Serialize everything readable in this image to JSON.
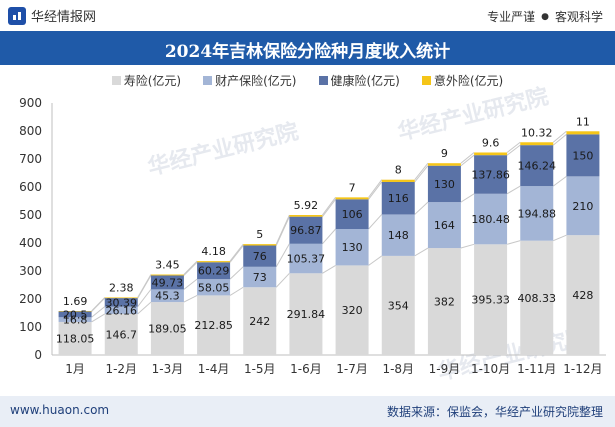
{
  "header": {
    "brand": "华经情报网",
    "tag1": "专业严谨",
    "tag2": "客观科学"
  },
  "footer": {
    "website": "www.huaon.com",
    "source": "数据来源：保监会，华经产业研究院整理"
  },
  "colors": {
    "title_bg": "#1f5aa8",
    "logo": "#1e4fa8",
    "footer_bg": "#e9eef6"
  },
  "chart_data": {
    "type": "bar",
    "stacked": true,
    "title": "2024年吉林保险分险种月度收入统计",
    "categories": [
      "1月",
      "1-2月",
      "1-3月",
      "1-4月",
      "1-5月",
      "1-6月",
      "1-7月",
      "1-8月",
      "1-9月",
      "1-10月",
      "1-11月",
      "1-12月"
    ],
    "series": [
      {
        "name": "寿险(亿元)",
        "color": "#d9d9d9",
        "values": [
          118.05,
          146.7,
          189.05,
          212.85,
          242,
          291.84,
          320,
          354,
          382,
          395.33,
          408.33,
          428
        ],
        "labels": [
          "118.05",
          "146.7",
          "189.05",
          "212.85",
          "242",
          "291.84",
          "320",
          "354",
          "382",
          "395.33",
          "408.33",
          "428"
        ]
      },
      {
        "name": "财产保险(亿元)",
        "color": "#a3b5d6",
        "values": [
          16.8,
          26.16,
          45.3,
          58.05,
          73,
          105.37,
          130,
          148,
          164,
          180.48,
          194.88,
          210
        ],
        "labels": [
          "16.8",
          "26.16",
          "45.3",
          "58.05",
          "73",
          "105.37",
          "130",
          "148",
          "164",
          "180.48",
          "194.88",
          "210"
        ]
      },
      {
        "name": "健康险(亿元)",
        "color": "#5a72a6",
        "values": [
          20.5,
          30.39,
          49.73,
          60.29,
          76,
          96.87,
          106,
          116,
          130,
          137.86,
          146.24,
          150
        ],
        "labels": [
          "20.5",
          "30.39",
          "49.73",
          "60.29",
          "76",
          "96.87",
          "106",
          "116",
          "130",
          "137.86",
          "146.24",
          "150"
        ]
      },
      {
        "name": "意外险(亿元)",
        "color": "#f5c518",
        "values": [
          1.69,
          2.38,
          3.45,
          4.18,
          5,
          5.92,
          7,
          8,
          9,
          9.6,
          10.32,
          11
        ],
        "labels": [
          "1.69",
          "2.38",
          "3.45",
          "4.18",
          "5",
          "5.92",
          "7",
          "8",
          "9",
          "9.6",
          "10.32",
          "11"
        ]
      }
    ],
    "ylim": [
      0,
      900
    ],
    "yticks": [
      0,
      100,
      200,
      300,
      400,
      500,
      600,
      700,
      800,
      900
    ],
    "legend_position": "top",
    "grid": false,
    "watermark": "华经产业研究院"
  }
}
